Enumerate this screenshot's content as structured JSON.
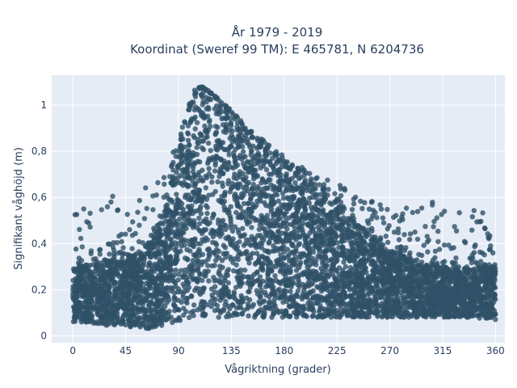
{
  "chart_data": {
    "type": "scatter",
    "title_lines": [
      "År 1979 - 2019",
      "Koordinat (Sweref 99 TM): E 465781, N 6204736"
    ],
    "xlabel": "Vågriktning (grader)",
    "ylabel": "Signifikant våghöjd (m)",
    "xlim": [
      -18,
      368
    ],
    "ylim": [
      -0.03,
      1.13
    ],
    "xticks": [
      0,
      45,
      90,
      135,
      180,
      225,
      270,
      315,
      360
    ],
    "yticks": [
      0,
      0.2,
      0.4,
      0.6,
      0.8,
      1
    ],
    "ytick_labels": [
      "0",
      "0,2",
      "0,4",
      "0,6",
      "0,8",
      "1"
    ],
    "grid": true,
    "legend": "none",
    "colors": {
      "marker": "#2f5168",
      "plot_bg": "#e5ecf6",
      "grid": "#ffffff",
      "text": "#2a3f5f"
    },
    "envelope": {
      "x": [
        0,
        20,
        40,
        55,
        65,
        75,
        85,
        95,
        100,
        105,
        110,
        120,
        135,
        150,
        165,
        180,
        200,
        225,
        250,
        270,
        290,
        315,
        340,
        360
      ],
      "upper": [
        0.3,
        0.31,
        0.33,
        0.36,
        0.4,
        0.5,
        0.68,
        0.92,
        1.0,
        1.06,
        1.08,
        1.04,
        0.97,
        0.87,
        0.8,
        0.74,
        0.66,
        0.55,
        0.45,
        0.37,
        0.33,
        0.3,
        0.29,
        0.3
      ],
      "lower": [
        0.06,
        0.05,
        0.04,
        0.03,
        0.03,
        0.04,
        0.05,
        0.07,
        0.08,
        0.08,
        0.08,
        0.08,
        0.08,
        0.08,
        0.08,
        0.08,
        0.08,
        0.08,
        0.08,
        0.08,
        0.08,
        0.08,
        0.08,
        0.07
      ],
      "sparse_max": [
        0.58,
        0.6,
        0.62,
        0.62,
        0.66,
        0.74,
        0.8,
        0.95,
        1.02,
        1.08,
        1.08,
        1.05,
        0.98,
        0.9,
        0.84,
        0.78,
        0.72,
        0.66,
        0.6,
        0.58,
        0.58,
        0.58,
        0.56,
        0.54
      ]
    }
  }
}
